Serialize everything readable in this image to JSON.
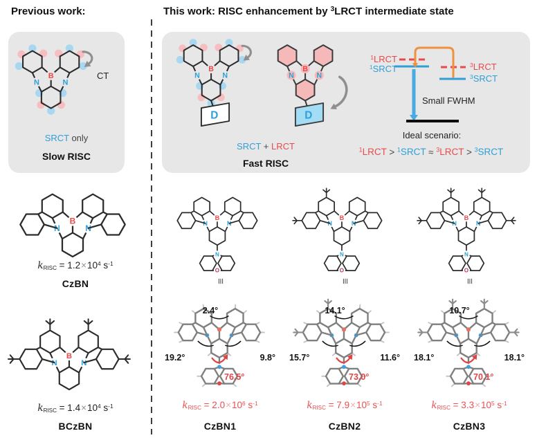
{
  "colors": {
    "red": "#e84a4a",
    "blue": "#2f9fd6",
    "orange": "#ef9240",
    "halo_blue": "#a9d7f0",
    "halo_pink": "#f6bec0",
    "pink_fill": "#f5b9b9",
    "donor_blue_fill": "#a3dcf5",
    "box_gray": "#e7e7e8"
  },
  "atoms": {
    "b": "B",
    "n": "N",
    "o": "O",
    "d": "D"
  },
  "left": {
    "title": "Previous work:",
    "box": {
      "ct": "CT",
      "srct": "SRCT",
      "only": " only",
      "verdict": "Slow RISC"
    },
    "czbn": {
      "name": "CzBN",
      "k": {
        "k": "k",
        "sub": "RISC",
        "eq": "=",
        "val": "1.2",
        "x": "×",
        "ten": "10",
        "exp": "4",
        "s": "s",
        "sexp": "-1"
      }
    },
    "bczbn": {
      "name": "BCzBN",
      "k": {
        "k": "k",
        "sub": "RISC",
        "eq": "=",
        "val": "1.4",
        "x": "×",
        "ten": "10",
        "exp": "4",
        "s": "s",
        "sexp": "-1"
      }
    }
  },
  "right": {
    "title": {
      "pre": "This work: RISC enhancement by ",
      "sup": "3",
      "post": "LRCT intermediate state"
    },
    "equiv": "≡",
    "box": {
      "srct": "SRCT",
      "plus": " + ",
      "lrct": "LRCT",
      "verdict": "Fast RISC",
      "levels": {
        "s_lrct": {
          "sup": "1",
          "t": "LRCT"
        },
        "s_srct": {
          "sup": "1",
          "t": "SRCT"
        },
        "t_lrct": {
          "sup": "3",
          "t": "LRCT"
        },
        "t_srct": {
          "sup": "3",
          "t": "SRCT"
        }
      },
      "fwhm": "Small FWHM",
      "ideal_title": "Ideal scenario:",
      "ideal": {
        "t1": {
          "sup": "1",
          "t": "LRCT"
        },
        "op1": " > ",
        "t2": {
          "sup": "1",
          "t": "SRCT"
        },
        "op2": " ≈ ",
        "t3": {
          "sup": "3",
          "t": "LRCT"
        },
        "op3": " > ",
        "t4": {
          "sup": "3",
          "t": "SRCT"
        }
      }
    },
    "compounds": [
      {
        "name": "CzBN1",
        "k": {
          "k": "k",
          "sub": "RISC",
          "eq": "=",
          "val": "2.0",
          "x": "×",
          "ten": "10",
          "exp": "6",
          "s": "s",
          "sexp": "-1"
        },
        "angles": {
          "top": "2.4°",
          "left": "19.2°",
          "right": "9.8°",
          "donor": "76.5°"
        }
      },
      {
        "name": "CzBN2",
        "k": {
          "k": "k",
          "sub": "RISC",
          "eq": "=",
          "val": "7.9",
          "x": "×",
          "ten": "10",
          "exp": "5",
          "s": "s",
          "sexp": "-1"
        },
        "angles": {
          "top": "14.1°",
          "left": "15.7°",
          "right": "11.6°",
          "donor": "73.0°"
        }
      },
      {
        "name": "CzBN3",
        "k": {
          "k": "k",
          "sub": "RISC",
          "eq": "=",
          "val": "3.3",
          "x": "×",
          "ten": "10",
          "exp": "5",
          "s": "s",
          "sexp": "-1"
        },
        "angles": {
          "top": "10.7°",
          "left": "18.1°",
          "right": "18.1°",
          "donor": "70.1°"
        }
      }
    ]
  }
}
